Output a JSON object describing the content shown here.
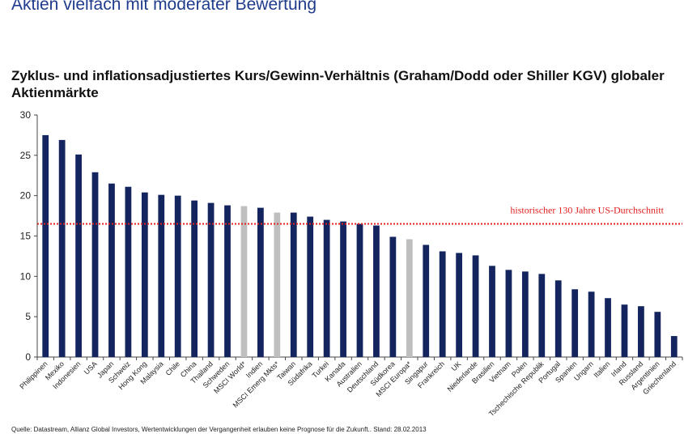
{
  "page": {
    "headline": "Aktien vielfach mit moderater Bewertung",
    "footer": "Quelle: Datastream, Allianz Global Investors, Wertentwicklungen der Vergangenheit erlauben keine Prognose für die Zukunft.. Stand: 28.02.2013"
  },
  "chart_data": {
    "type": "bar",
    "title": "Zyklus- und inflationsadjustiertes Kurs/Gewinn-Verhältnis (Graham/Dodd oder Shiller KGV) globaler Aktienmärkte",
    "xlabel": "",
    "ylabel": "",
    "ylim": [
      0,
      30
    ],
    "yticks": [
      0,
      5,
      10,
      15,
      20,
      25,
      30
    ],
    "grid": false,
    "categories": [
      "Philippinen",
      "Mexiko",
      "Indonesien",
      "USA",
      "Japan",
      "Schweiz",
      "Hong Kong",
      "Malaysia",
      "Chile",
      "China",
      "Thailand",
      "Schweden",
      "MSCI World*",
      "Indien",
      "MSCI Emerg Mkts*",
      "Taiwan",
      "Südafrika",
      "Turkei",
      "Kanada",
      "Australien",
      "Deutschland",
      "Südkorea",
      "MSCI Europa*",
      "Singapur",
      "Frankreich",
      "UK",
      "Niederlande",
      "Brasilien",
      "Vietnam",
      "Polen",
      "Tschechische Republik",
      "Portugal",
      "Spanien",
      "Ungarn",
      "Italien",
      "Irland",
      "Russland",
      "Argentinien",
      "Griechenland"
    ],
    "values": [
      27.5,
      26.9,
      25.1,
      22.9,
      21.5,
      21.1,
      20.4,
      20.1,
      20.0,
      19.4,
      19.1,
      18.8,
      18.7,
      18.5,
      17.9,
      17.9,
      17.4,
      17.0,
      16.8,
      16.5,
      16.3,
      14.9,
      14.6,
      13.9,
      13.1,
      12.9,
      12.6,
      11.3,
      10.8,
      10.6,
      10.3,
      9.5,
      8.4,
      8.1,
      7.3,
      6.5,
      6.3,
      5.6,
      2.6
    ],
    "highlighted": [
      "MSCI World*",
      "MSCI Emerg Mkts*",
      "MSCI Europa*"
    ],
    "colors": {
      "bar": "#13245e",
      "highlight": "#bfbfbf",
      "reference": "#e32020",
      "axis": "#444444"
    },
    "reference_line": {
      "value": 16.5,
      "label": "historischer 130 Jahre US-Durchschnitt",
      "style": "dotted"
    }
  }
}
